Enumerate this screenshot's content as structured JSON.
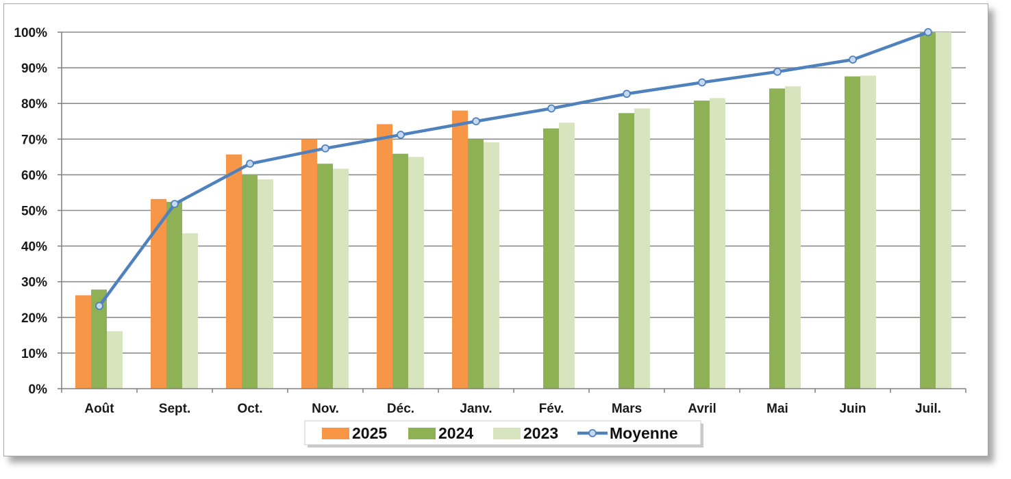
{
  "chart_data": {
    "type": "bar",
    "categories": [
      "Août",
      "Sept.",
      "Oct.",
      "Nov.",
      "Déc.",
      "Janv.",
      "Fév.",
      "Mars",
      "Avril",
      "Mai",
      "Juin",
      "Juil."
    ],
    "series": [
      {
        "name": "2025",
        "kind": "bar",
        "color": "#f79646",
        "values": [
          26.2,
          53.2,
          65.7,
          69.9,
          74.2,
          78.0,
          null,
          null,
          null,
          null,
          null,
          null
        ]
      },
      {
        "name": "2024",
        "kind": "bar",
        "color": "#8fb155",
        "values": [
          27.8,
          52.4,
          60.1,
          63.1,
          65.9,
          69.9,
          73.0,
          77.3,
          80.8,
          84.2,
          87.6,
          100
        ]
      },
      {
        "name": "2023",
        "kind": "bar",
        "color": "#d7e4bd",
        "values": [
          16.1,
          43.6,
          58.7,
          61.7,
          65.0,
          69.1,
          74.6,
          78.6,
          81.5,
          84.8,
          87.8,
          100
        ]
      },
      {
        "name": "Moyenne",
        "kind": "line",
        "color": "#4f81bd",
        "values": [
          23.2,
          51.8,
          63.1,
          67.4,
          71.2,
          75.0,
          78.6,
          82.7,
          85.9,
          88.9,
          92.3,
          100
        ]
      }
    ],
    "ylim": [
      0,
      100
    ],
    "yticks": [
      "0%",
      "10%",
      "20%",
      "30%",
      "40%",
      "50%",
      "60%",
      "70%",
      "80%",
      "90%",
      "100%"
    ],
    "grid": true,
    "legend": "bottom",
    "title": "",
    "xlabel": "",
    "ylabel": ""
  }
}
